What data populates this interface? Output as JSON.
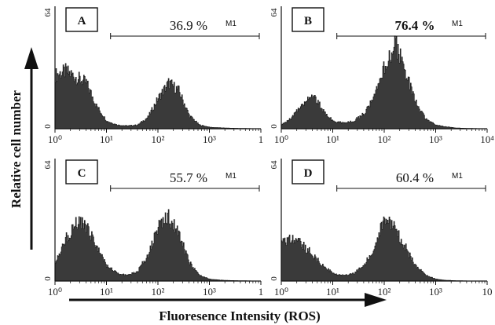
{
  "figure": {
    "xlabel": "Fluoresence Intensity (ROS)",
    "ylabel": "Relative cell number"
  },
  "chart_data": [
    {
      "type": "area",
      "panel": "A",
      "xscale": "log",
      "xlim": [
        1,
        10000
      ],
      "ylim": [
        0,
        64
      ],
      "x_tick_labels": [
        "10⁰",
        "10¹",
        "10²",
        "10³",
        "1"
      ],
      "y_tick_labels": [
        "0",
        "64"
      ],
      "gate": {
        "name": "M1",
        "percent_label": "36.9 %",
        "bold": false,
        "range": [
          12,
          10000
        ]
      },
      "x": [
        1,
        1.6,
        2.5,
        4,
        6.3,
        10,
        16,
        25,
        40,
        63,
        100,
        160,
        250,
        400,
        630,
        1000,
        1600,
        2500,
        4000,
        6300,
        10000
      ],
      "values": [
        28,
        30,
        27,
        24,
        12,
        4,
        2,
        1.5,
        2,
        6,
        16,
        24,
        20,
        7,
        2,
        0.8,
        0.5,
        0.3,
        0.2,
        0.1,
        0
      ]
    },
    {
      "type": "area",
      "panel": "B",
      "xscale": "log",
      "xlim": [
        1,
        10000
      ],
      "ylim": [
        0,
        64
      ],
      "x_tick_labels": [
        "10⁰",
        "10¹",
        "10²",
        "10³",
        "10⁴"
      ],
      "y_tick_labels": [
        "0",
        "64"
      ],
      "gate": {
        "name": "M1",
        "percent_label": "76.4 %",
        "bold": true,
        "range": [
          12,
          10000
        ]
      },
      "x": [
        1,
        1.6,
        2.5,
        4,
        6.3,
        10,
        16,
        25,
        40,
        63,
        100,
        160,
        250,
        400,
        630,
        1000,
        1600,
        2500,
        4000,
        6300,
        10000
      ],
      "values": [
        2,
        6,
        13,
        18,
        10,
        4,
        3,
        4,
        8,
        16,
        32,
        45,
        30,
        14,
        5,
        2,
        1,
        0.4,
        0.2,
        0.1,
        0
      ]
    },
    {
      "type": "area",
      "panel": "C",
      "xscale": "log",
      "xlim": [
        1,
        10000
      ],
      "ylim": [
        0,
        64
      ],
      "x_tick_labels": [
        "10⁰",
        "10¹",
        "10²",
        "10³",
        "1"
      ],
      "y_tick_labels": [
        "0",
        "64"
      ],
      "gate": {
        "name": "M1",
        "percent_label": "55.7 %",
        "bold": false,
        "range": [
          12,
          10000
        ]
      },
      "x": [
        1,
        1.6,
        2.5,
        4,
        6.3,
        10,
        16,
        25,
        40,
        63,
        100,
        160,
        250,
        400,
        630,
        1000,
        1600,
        2500,
        4000,
        6300,
        10000
      ],
      "values": [
        10,
        22,
        30,
        29,
        18,
        8,
        4,
        3,
        5,
        14,
        28,
        34,
        25,
        10,
        3,
        1,
        0.5,
        0.3,
        0.2,
        0.1,
        0
      ]
    },
    {
      "type": "area",
      "panel": "D",
      "xscale": "log",
      "xlim": [
        1,
        10000
      ],
      "ylim": [
        0,
        64
      ],
      "x_tick_labels": [
        "10⁰",
        "10¹",
        "10²",
        "10³",
        "10"
      ],
      "y_tick_labels": [
        "0",
        "64"
      ],
      "gate": {
        "name": "M1",
        "percent_label": "60.4 %",
        "bold": false,
        "range": [
          12,
          10000
        ]
      },
      "x": [
        1,
        1.6,
        2.5,
        4,
        6.3,
        10,
        16,
        25,
        40,
        63,
        100,
        160,
        250,
        400,
        630,
        1000,
        1600,
        2500,
        4000,
        6300,
        10000
      ],
      "values": [
        20,
        22,
        19,
        14,
        8,
        4,
        3,
        4,
        8,
        18,
        32,
        27,
        18,
        8,
        3,
        1,
        0.4,
        0.2,
        0.1,
        0.1,
        0
      ]
    }
  ],
  "colors": {
    "fill": "#3a3a3a",
    "stroke": "#111111",
    "axis": "#111111"
  }
}
